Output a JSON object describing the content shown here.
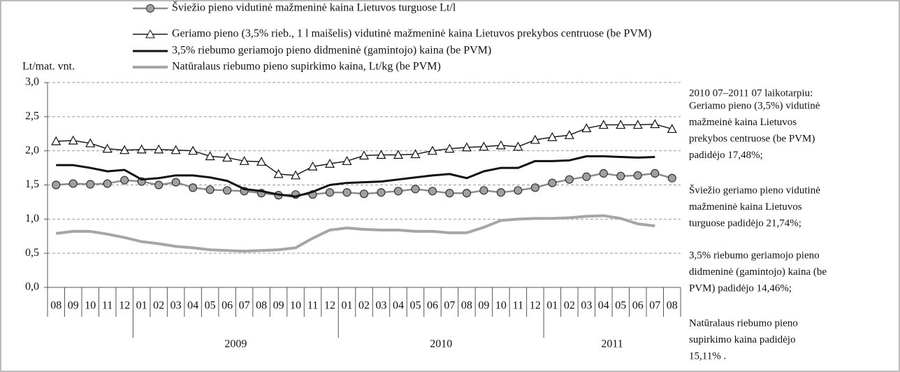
{
  "chart_data": {
    "type": "line",
    "y_label": "Lt/mat. vnt.",
    "categories": [
      "08",
      "09",
      "10",
      "11",
      "12",
      "01",
      "02",
      "03",
      "04",
      "05",
      "06",
      "07",
      "08",
      "09",
      "10",
      "11",
      "12",
      "01",
      "02",
      "03",
      "04",
      "05",
      "06",
      "07",
      "08",
      "09",
      "10",
      "11",
      "12",
      "01",
      "02",
      "03",
      "04",
      "05",
      "06",
      "07",
      "08"
    ],
    "years": [
      "2009",
      "2010",
      "2011"
    ],
    "ylim": [
      0,
      3
    ],
    "yticks": [
      {
        "value": 0,
        "label": "0,0"
      },
      {
        "value": 0.5,
        "label": "0,5"
      },
      {
        "value": 1,
        "label": "1,0"
      },
      {
        "value": 1.5,
        "label": "1,5"
      },
      {
        "value": 2,
        "label": "2,0"
      },
      {
        "value": 2.5,
        "label": "2,5"
      },
      {
        "value": 3,
        "label": "3,0"
      }
    ],
    "grid": true,
    "series": [
      {
        "name": "Šviežio pieno vidutinė mažmeninė kaina Lietuvos turguose Lt/l",
        "color": "#8c8c8c",
        "marker": "circle",
        "values": [
          1.5,
          1.52,
          1.51,
          1.52,
          1.57,
          1.55,
          1.5,
          1.54,
          1.46,
          1.43,
          1.42,
          1.41,
          1.38,
          1.35,
          1.36,
          1.36,
          1.39,
          1.39,
          1.37,
          1.39,
          1.41,
          1.44,
          1.41,
          1.38,
          1.38,
          1.42,
          1.39,
          1.42,
          1.46,
          1.53,
          1.58,
          1.62,
          1.67,
          1.63,
          1.64,
          1.67,
          1.6
        ]
      },
      {
        "name": "Geriamo pieno (3,5% rieb., 1 l maišelis) vidutinė mažmeninė kaina Lietuvos prekybos centruose (be PVM)",
        "color": "#1a1a1a",
        "marker": "triangle",
        "values": [
          2.14,
          2.15,
          2.11,
          2.03,
          2.01,
          2.02,
          2.02,
          2.01,
          2.0,
          1.92,
          1.9,
          1.85,
          1.84,
          1.66,
          1.64,
          1.77,
          1.81,
          1.85,
          1.93,
          1.94,
          1.94,
          1.95,
          2.0,
          2.03,
          2.05,
          2.06,
          2.08,
          2.06,
          2.16,
          2.2,
          2.23,
          2.33,
          2.38,
          2.38,
          2.38,
          2.39,
          2.32
        ]
      },
      {
        "name": "3,5% riebumo geriamojo pieno didmeninė (gamintojo) kaina (be PVM)",
        "color": "#111111",
        "marker": "none",
        "values": [
          1.79,
          1.79,
          1.75,
          1.7,
          1.72,
          1.58,
          1.6,
          1.64,
          1.64,
          1.61,
          1.56,
          1.44,
          1.41,
          1.36,
          1.33,
          1.4,
          1.5,
          1.53,
          1.54,
          1.55,
          1.58,
          1.61,
          1.64,
          1.66,
          1.6,
          1.7,
          1.75,
          1.75,
          1.85,
          1.85,
          1.86,
          1.92,
          1.92,
          1.91,
          1.9,
          1.91,
          null
        ]
      },
      {
        "name": "Natūralaus riebumo pieno supirkimo kaina, Lt/kg (be PVM)",
        "color": "#a6a6a6",
        "marker": "none",
        "values": [
          0.79,
          0.82,
          0.82,
          0.78,
          0.73,
          0.67,
          0.64,
          0.6,
          0.58,
          0.55,
          0.54,
          0.53,
          0.54,
          0.55,
          0.58,
          0.72,
          0.84,
          0.87,
          0.85,
          0.84,
          0.84,
          0.82,
          0.82,
          0.8,
          0.8,
          0.88,
          0.98,
          1.0,
          1.01,
          1.01,
          1.02,
          1.04,
          1.05,
          1.01,
          0.93,
          0.9,
          null
        ]
      }
    ],
    "annotations": [
      [
        "2010 07–2011 07 laikotarpiu:"
      ],
      [
        "Geriamo pieno (3,5%) vidutinė",
        "mažmeinė kaina Lietuvos",
        "prekybos centruose (be PVM)",
        "padidėjo 17,48%;"
      ],
      [
        " Šviežio geriamo pieno vidutinė",
        "mažmeninė kaina Lietuvos",
        "turguose padidėjo 21,74%;"
      ],
      [
        "3,5% riebumo geriamojo pieno",
        "didmeninė (gamintojo) kaina (be",
        "PVM) padidėjo 14,46%;"
      ],
      [
        "Natūralaus riebumo pieno",
        "supirkimo kaina padidėjo",
        "15,11% ."
      ]
    ]
  }
}
